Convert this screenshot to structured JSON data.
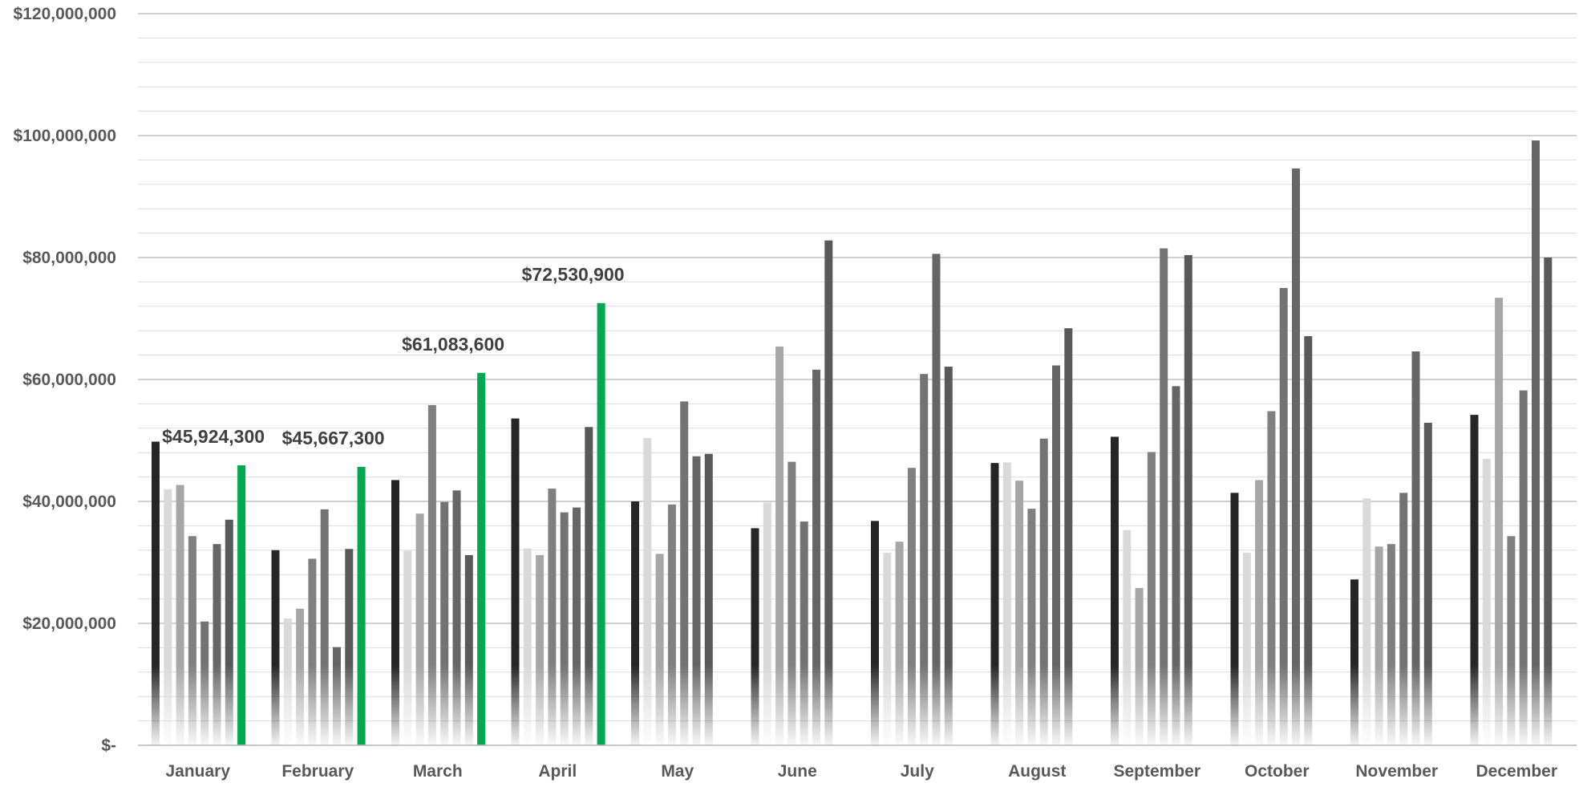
{
  "chart_data": {
    "type": "bar",
    "title": "",
    "xlabel": "",
    "ylabel": "",
    "ylim": [
      0,
      120000000
    ],
    "y_ticks": [
      {
        "value": 0,
        "label": "$-"
      },
      {
        "value": 20000000,
        "label": "$20,000,000"
      },
      {
        "value": 40000000,
        "label": "$40,000,000"
      },
      {
        "value": 60000000,
        "label": "$60,000,000"
      },
      {
        "value": 80000000,
        "label": "$80,000,000"
      },
      {
        "value": 100000000,
        "label": "$100,000,000"
      },
      {
        "value": 120000000,
        "label": "$120,000,000"
      }
    ],
    "minor_gridline_step": 4000000,
    "grid": true,
    "legend": "none",
    "categories": [
      "January",
      "February",
      "March",
      "April",
      "May",
      "June",
      "July",
      "August",
      "September",
      "October",
      "November",
      "December"
    ],
    "series_colors": [
      "#262626",
      "#d9d9d9",
      "#a6a6a6",
      "#808080",
      "#737373",
      "#666666",
      "#595959",
      "#bfbfbf"
    ],
    "highlight_color": "#00a94f",
    "groups": [
      {
        "values": [
          49800000,
          42000000,
          42700000,
          34300000,
          20300000,
          33000000,
          37000000
        ],
        "highlight": 45924300,
        "highlight_label": "$45,924,300"
      },
      {
        "values": [
          32000000,
          20800000,
          22400000,
          30600000,
          38700000,
          16100000,
          32200000
        ],
        "highlight": 45667300,
        "highlight_label": "$45,667,300"
      },
      {
        "values": [
          43500000,
          31900000,
          38000000,
          55800000,
          39900000,
          41800000,
          31200000
        ],
        "highlight": 61083600,
        "highlight_label": "$61,083,600"
      },
      {
        "values": [
          53600000,
          32300000,
          31200000,
          42100000,
          38200000,
          39000000,
          52200000
        ],
        "highlight": 72530900,
        "highlight_label": "$72,530,900"
      },
      {
        "values": [
          40000000,
          50400000,
          31400000,
          39500000,
          56400000,
          47400000,
          47800000
        ]
      },
      {
        "values": [
          35600000,
          39800000,
          65400000,
          46500000,
          36700000,
          61600000,
          82800000
        ]
      },
      {
        "values": [
          36800000,
          31600000,
          33400000,
          45500000,
          60900000,
          80600000,
          62100000
        ]
      },
      {
        "values": [
          46300000,
          46400000,
          43400000,
          38800000,
          50300000,
          62300000,
          68400000
        ]
      },
      {
        "values": [
          50600000,
          35300000,
          25800000,
          48100000,
          81500000,
          58900000,
          80400000
        ]
      },
      {
        "values": [
          41400000,
          31600000,
          43500000,
          54800000,
          75000000,
          94600000,
          67100000
        ]
      },
      {
        "values": [
          27200000,
          40500000,
          32600000,
          33000000,
          41400000,
          64600000,
          52900000
        ]
      },
      {
        "values": [
          54200000,
          47000000,
          73400000,
          34300000,
          58200000,
          99200000,
          80000000
        ]
      }
    ]
  }
}
